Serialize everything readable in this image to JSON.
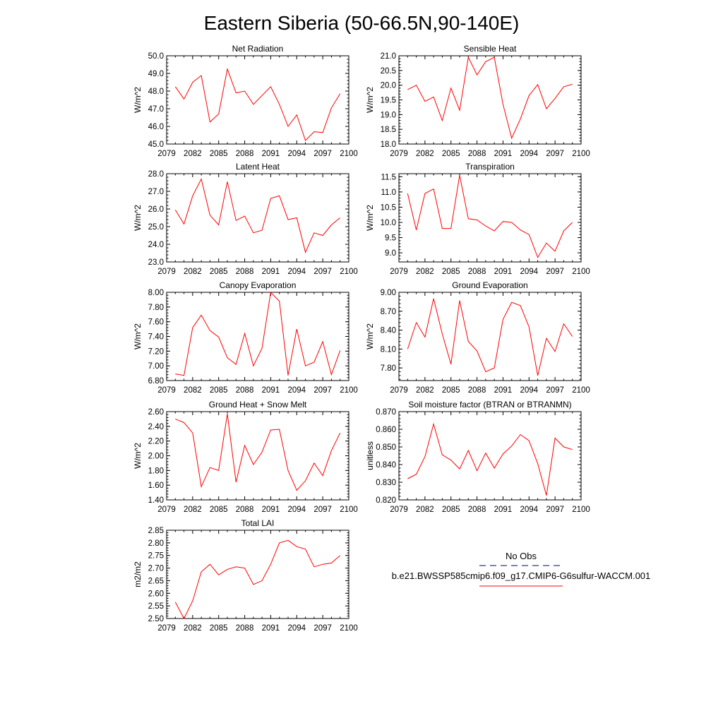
{
  "figure": {
    "title": "Eastern Siberia (50-66.5N,90-140E)"
  },
  "legend": {
    "entries": [
      {
        "name": "No Obs",
        "color": "#000080",
        "dash": "dashed"
      },
      {
        "name": "b.e21.BWSSP585cmip6.f09_g17.CMIP6-G6sulfur-WACCM.001",
        "color": "#ff0000",
        "dash": "solid"
      }
    ]
  },
  "chart_data": [
    {
      "type": "line",
      "title": "Net Radiation",
      "ylabel": "W/m^2",
      "xlim": [
        2079,
        2100
      ],
      "ylim": [
        45.0,
        50.0
      ],
      "xticks": [
        2079,
        2082,
        2085,
        2088,
        2091,
        2094,
        2097,
        2100
      ],
      "yticks": [
        "45.0",
        "46.0",
        "47.0",
        "48.0",
        "49.0",
        "50.0"
      ],
      "series": [
        {
          "color": "#ff0000",
          "x": [
            2080,
            2081,
            2082,
            2083,
            2084,
            2085,
            2086,
            2087,
            2088,
            2089,
            2090,
            2091,
            2092,
            2093,
            2094,
            2095,
            2096,
            2097,
            2098,
            2099
          ],
          "values": [
            48.25,
            47.55,
            48.5,
            48.88,
            46.25,
            46.7,
            49.25,
            47.9,
            48.0,
            47.25,
            47.75,
            48.25,
            47.25,
            46.0,
            46.65,
            45.2,
            45.7,
            45.65,
            47.05,
            47.85
          ]
        }
      ]
    },
    {
      "type": "line",
      "title": "Sensible Heat",
      "ylabel": "W/m^2",
      "xlim": [
        2079,
        2100
      ],
      "ylim": [
        18.0,
        21.0
      ],
      "xticks": [
        2079,
        2082,
        2085,
        2088,
        2091,
        2094,
        2097,
        2100
      ],
      "yticks": [
        "18.0",
        "18.5",
        "19.0",
        "19.5",
        "20.0",
        "20.5",
        "21.0"
      ],
      "series": [
        {
          "color": "#ff0000",
          "x": [
            2080,
            2081,
            2082,
            2083,
            2084,
            2085,
            2086,
            2087,
            2088,
            2089,
            2090,
            2091,
            2092,
            2093,
            2094,
            2095,
            2096,
            2097,
            2098,
            2099
          ],
          "values": [
            19.85,
            20.0,
            19.45,
            19.6,
            18.8,
            19.9,
            19.15,
            20.95,
            20.35,
            20.8,
            20.95,
            19.35,
            18.2,
            18.85,
            19.65,
            20.02,
            19.2,
            19.55,
            19.95,
            20.03
          ]
        }
      ]
    },
    {
      "type": "line",
      "title": "Latent Heat",
      "ylabel": "W/m^2",
      "xlim": [
        2079,
        2100
      ],
      "ylim": [
        23.0,
        28.0
      ],
      "xticks": [
        2079,
        2082,
        2085,
        2088,
        2091,
        2094,
        2097,
        2100
      ],
      "yticks": [
        "23.0",
        "24.0",
        "25.0",
        "26.0",
        "27.0",
        "28.0"
      ],
      "series": [
        {
          "color": "#ff0000",
          "x": [
            2080,
            2081,
            2082,
            2083,
            2084,
            2085,
            2086,
            2087,
            2088,
            2089,
            2090,
            2091,
            2092,
            2093,
            2094,
            2095,
            2096,
            2097,
            2098,
            2099
          ],
          "values": [
            25.95,
            25.15,
            26.75,
            27.7,
            25.65,
            25.1,
            27.55,
            25.35,
            25.6,
            24.65,
            24.8,
            26.6,
            26.75,
            25.4,
            25.5,
            23.55,
            24.65,
            24.5,
            25.1,
            25.5
          ]
        }
      ]
    },
    {
      "type": "line",
      "title": "Transpiration",
      "ylabel": "W/m^2",
      "xlim": [
        2079,
        2100
      ],
      "ylim": [
        8.7,
        11.6
      ],
      "xticks": [
        2079,
        2082,
        2085,
        2088,
        2091,
        2094,
        2097,
        2100
      ],
      "yticks": [
        "9.0",
        "9.5",
        "10.0",
        "10.5",
        "11.0",
        "11.5"
      ],
      "series": [
        {
          "color": "#ff0000",
          "x": [
            2080,
            2081,
            2082,
            2083,
            2084,
            2085,
            2086,
            2087,
            2088,
            2089,
            2090,
            2091,
            2092,
            2093,
            2094,
            2095,
            2096,
            2097,
            2098,
            2099
          ],
          "values": [
            10.95,
            9.75,
            10.95,
            11.1,
            9.8,
            9.8,
            11.55,
            10.12,
            10.08,
            9.88,
            9.72,
            10.03,
            10.0,
            9.75,
            9.6,
            8.85,
            9.32,
            9.05,
            9.72,
            10.0
          ]
        }
      ]
    },
    {
      "type": "line",
      "title": "Canopy Evaporation",
      "ylabel": "W/m^2",
      "xlim": [
        2079,
        2100
      ],
      "ylim": [
        6.8,
        8.0
      ],
      "xticks": [
        2079,
        2082,
        2085,
        2088,
        2091,
        2094,
        2097,
        2100
      ],
      "yticks": [
        "6.80",
        "7.00",
        "7.20",
        "7.40",
        "7.60",
        "7.80",
        "8.00"
      ],
      "series": [
        {
          "color": "#ff0000",
          "x": [
            2080,
            2081,
            2082,
            2083,
            2084,
            2085,
            2086,
            2087,
            2088,
            2089,
            2090,
            2091,
            2092,
            2093,
            2094,
            2095,
            2096,
            2097,
            2098,
            2099
          ],
          "values": [
            6.89,
            6.87,
            7.52,
            7.69,
            7.48,
            7.39,
            7.11,
            7.02,
            7.44,
            7.0,
            7.24,
            8.0,
            7.88,
            6.87,
            7.5,
            7.0,
            7.05,
            7.33,
            6.88,
            7.21
          ]
        }
      ]
    },
    {
      "type": "line",
      "title": "Ground Evaporation",
      "ylabel": "W/m^2",
      "xlim": [
        2079,
        2100
      ],
      "ylim": [
        7.6,
        9.0
      ],
      "xticks": [
        2079,
        2082,
        2085,
        2088,
        2091,
        2094,
        2097,
        2100
      ],
      "yticks": [
        "7.80",
        "8.10",
        "8.40",
        "8.70",
        "9.00"
      ],
      "series": [
        {
          "color": "#ff0000",
          "x": [
            2080,
            2081,
            2082,
            2083,
            2084,
            2085,
            2086,
            2087,
            2088,
            2089,
            2090,
            2091,
            2092,
            2093,
            2094,
            2095,
            2096,
            2097,
            2098,
            2099
          ],
          "values": [
            8.1,
            8.52,
            8.29,
            8.9,
            8.34,
            7.86,
            8.87,
            8.22,
            8.07,
            7.74,
            7.8,
            8.57,
            8.84,
            8.79,
            8.45,
            7.68,
            8.27,
            8.06,
            8.5,
            8.3
          ]
        }
      ]
    },
    {
      "type": "line",
      "title": "Ground Heat + Snow Melt",
      "ylabel": "W/m^2",
      "xlim": [
        2079,
        2100
      ],
      "ylim": [
        1.4,
        2.6
      ],
      "xticks": [
        2079,
        2082,
        2085,
        2088,
        2091,
        2094,
        2097,
        2100
      ],
      "yticks": [
        "1.40",
        "1.60",
        "1.80",
        "2.00",
        "2.20",
        "2.40",
        "2.60"
      ],
      "series": [
        {
          "color": "#ff0000",
          "x": [
            2080,
            2081,
            2082,
            2083,
            2084,
            2085,
            2086,
            2087,
            2088,
            2089,
            2090,
            2091,
            2092,
            2093,
            2094,
            2095,
            2096,
            2097,
            2098,
            2099
          ],
          "values": [
            2.5,
            2.45,
            2.31,
            1.58,
            1.84,
            1.8,
            2.57,
            1.64,
            2.14,
            1.88,
            2.05,
            2.35,
            2.36,
            1.8,
            1.53,
            1.66,
            1.9,
            1.73,
            2.07,
            2.31
          ]
        }
      ]
    },
    {
      "type": "line",
      "title": "Soil moisture factor (BTRAN or BTRANMN)",
      "ylabel": "unitless",
      "xlim": [
        2079,
        2100
      ],
      "ylim": [
        0.82,
        0.87
      ],
      "xticks": [
        2079,
        2082,
        2085,
        2088,
        2091,
        2094,
        2097,
        2100
      ],
      "yticks": [
        "0.820",
        "0.830",
        "0.840",
        "0.850",
        "0.860",
        "0.870"
      ],
      "series": [
        {
          "color": "#ff0000",
          "x": [
            2080,
            2081,
            2082,
            2083,
            2084,
            2085,
            2086,
            2087,
            2088,
            2089,
            2090,
            2091,
            2092,
            2093,
            2094,
            2095,
            2096,
            2097,
            2098,
            2099
          ],
          "values": [
            0.832,
            0.8345,
            0.8445,
            0.863,
            0.8455,
            0.8425,
            0.8375,
            0.848,
            0.8365,
            0.8465,
            0.838,
            0.846,
            0.8505,
            0.857,
            0.8535,
            0.8405,
            0.8225,
            0.855,
            0.85,
            0.8485
          ]
        }
      ]
    },
    {
      "type": "line",
      "title": "Total LAI",
      "ylabel": "m2/m2",
      "xlim": [
        2079,
        2100
      ],
      "ylim": [
        2.5,
        2.85
      ],
      "xticks": [
        2079,
        2082,
        2085,
        2088,
        2091,
        2094,
        2097,
        2100
      ],
      "yticks": [
        "2.50",
        "2.55",
        "2.60",
        "2.65",
        "2.70",
        "2.75",
        "2.80",
        "2.85"
      ],
      "series": [
        {
          "color": "#ff0000",
          "x": [
            2080,
            2081,
            2082,
            2083,
            2084,
            2085,
            2086,
            2087,
            2088,
            2089,
            2090,
            2091,
            2092,
            2093,
            2094,
            2095,
            2096,
            2097,
            2098,
            2099
          ],
          "values": [
            2.565,
            2.5,
            2.57,
            2.685,
            2.715,
            2.673,
            2.695,
            2.705,
            2.7,
            2.635,
            2.65,
            2.715,
            2.8,
            2.81,
            2.785,
            2.775,
            2.705,
            2.715,
            2.72,
            2.75
          ]
        }
      ]
    }
  ]
}
